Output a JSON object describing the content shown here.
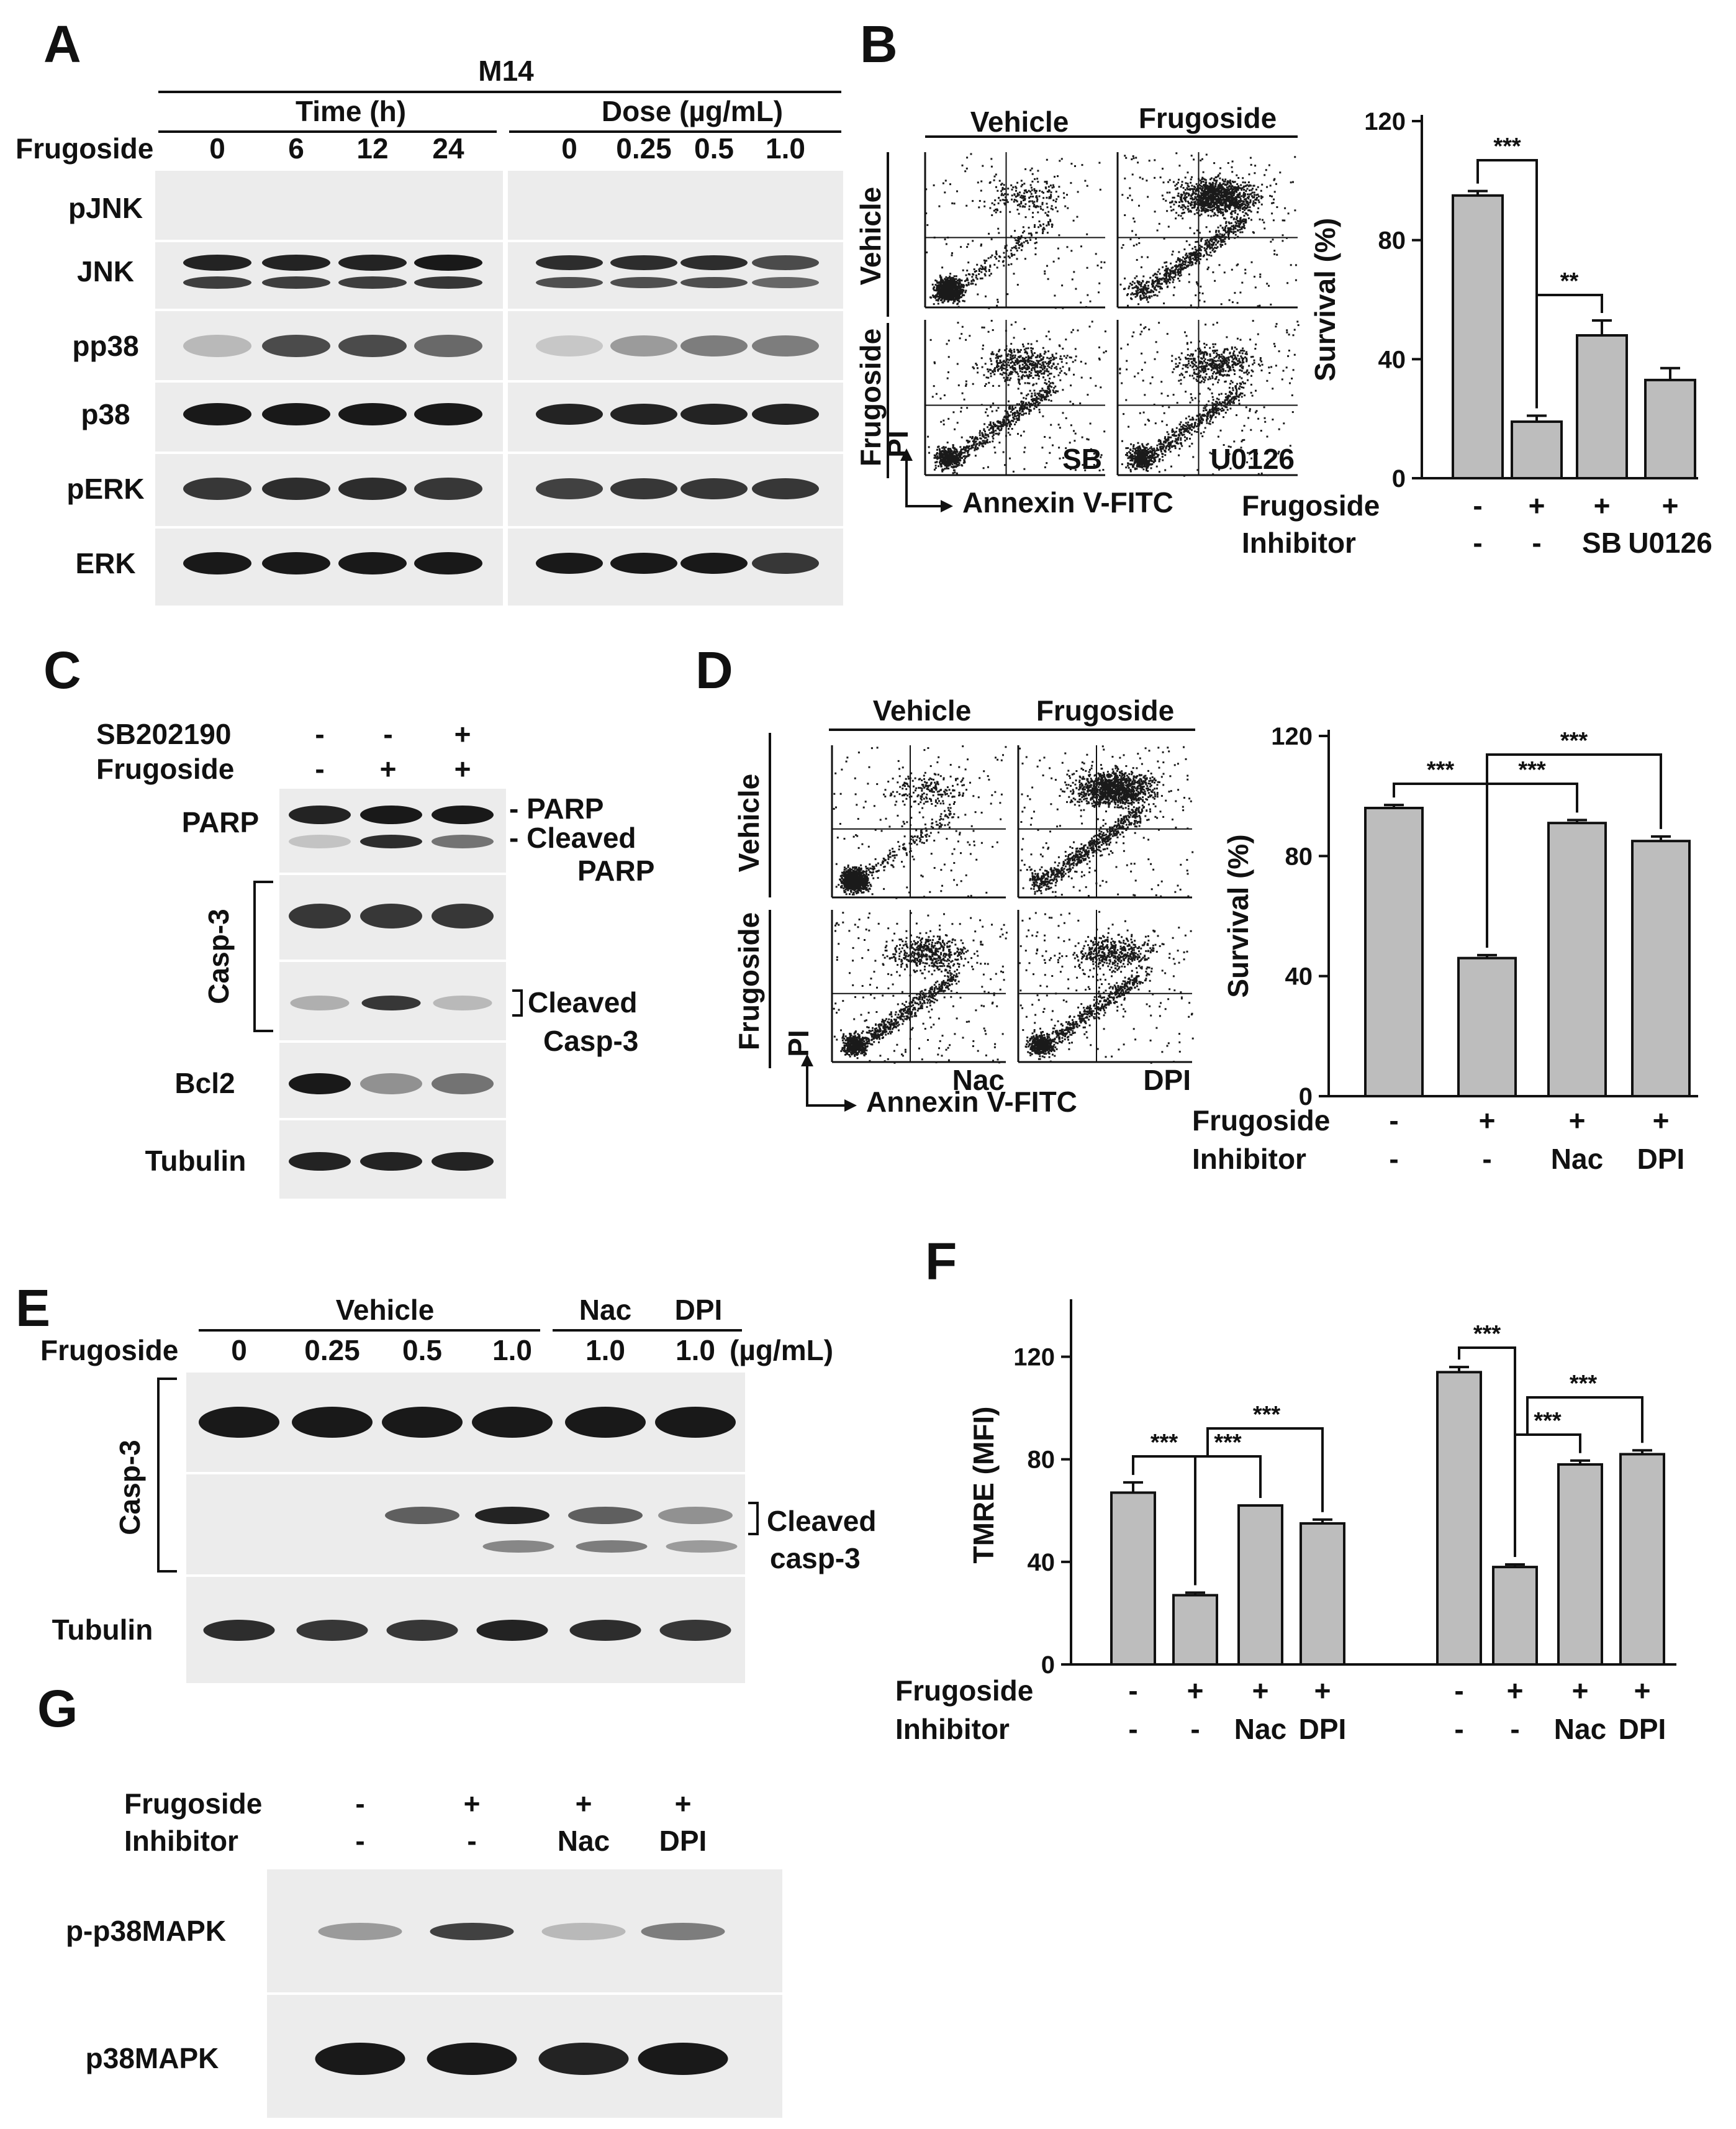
{
  "panels": {
    "A": {
      "label": "A",
      "cell_line": "M14",
      "time_header": "Time (h)",
      "dose_header": "Dose (µg/mL)",
      "row_label": "Frugoside",
      "time_lanes": [
        "0",
        "6",
        "12",
        "24"
      ],
      "dose_lanes": [
        "0",
        "0.25",
        "0.5",
        "1.0"
      ],
      "blots": [
        {
          "name": "pJNK",
          "time": [
            0,
            0,
            0,
            0
          ],
          "dose": [
            0,
            0,
            0,
            0
          ]
        },
        {
          "name": "JNK",
          "time": [
            0.9,
            0.9,
            0.9,
            0.95
          ],
          "dose": [
            0.85,
            0.85,
            0.85,
            0.7
          ]
        },
        {
          "name": "pp38",
          "time": [
            0.15,
            0.7,
            0.7,
            0.55
          ],
          "dose": [
            0.08,
            0.3,
            0.45,
            0.45
          ]
        },
        {
          "name": "p38",
          "time": [
            0.95,
            0.95,
            0.95,
            0.95
          ],
          "dose": [
            0.9,
            0.9,
            0.9,
            0.9
          ]
        },
        {
          "name": "pERK",
          "time": [
            0.8,
            0.85,
            0.85,
            0.8
          ],
          "dose": [
            0.75,
            0.8,
            0.8,
            0.8
          ]
        },
        {
          "name": "ERK",
          "time": [
            0.95,
            0.95,
            0.95,
            0.95
          ],
          "dose": [
            0.95,
            0.95,
            0.95,
            0.8
          ]
        }
      ]
    },
    "B": {
      "label": "B",
      "flow": {
        "col_headers": [
          "Vehicle",
          "Frugoside"
        ],
        "row_headers": [
          "Vehicle",
          "Frugoside"
        ],
        "inhibitor_labels": [
          "SB",
          "U0126"
        ],
        "y_axis": "PI",
        "x_axis": "Annexin V-FITC"
      },
      "bar": {
        "ylabel": "Survival (%)",
        "rows": [
          {
            "label": "Frugoside",
            "values": [
              "-",
              "+",
              "+",
              "+"
            ]
          },
          {
            "label": "Inhibitor",
            "values": [
              "-",
              "-",
              "SB",
              "U0126"
            ]
          }
        ],
        "sig": [
          "***",
          "**"
        ]
      }
    },
    "C": {
      "label": "C",
      "treatment_rows": [
        {
          "label": "SB202190",
          "values": [
            "-",
            "-",
            "+"
          ]
        },
        {
          "label": "Frugoside",
          "values": [
            "-",
            "+",
            "+"
          ]
        }
      ],
      "left_labels": {
        "parp": "PARP",
        "casp": "Casp-3",
        "bcl2": "Bcl2",
        "tubulin": "Tubulin"
      },
      "right_labels": {
        "parp": "- PARP",
        "cleaved1": "- Cleaved",
        "cleaved2": "PARP",
        "casp_cleaved1": "Cleaved",
        "casp_cleaved2": "Casp-3"
      }
    },
    "D": {
      "label": "D",
      "flow": {
        "col_headers": [
          "Vehicle",
          "Frugoside"
        ],
        "row_headers": [
          "Vehicle",
          "Frugoside"
        ],
        "inhibitor_labels": [
          "Nac",
          "DPI"
        ],
        "y_axis": "PI",
        "x_axis": "Annexin V-FITC"
      },
      "bar": {
        "ylabel": "Survival (%)",
        "rows": [
          {
            "label": "Frugoside",
            "values": [
              "-",
              "+",
              "+",
              "+"
            ]
          },
          {
            "label": "Inhibitor",
            "values": [
              "-",
              "-",
              "Nac",
              "DPI"
            ]
          }
        ],
        "sig": [
          "***",
          "***",
          "***"
        ]
      }
    },
    "E": {
      "label": "E",
      "group_vehicle": "Vehicle",
      "group_nac": "Nac",
      "group_dpi": "DPI",
      "row_label": "Frugoside",
      "lanes": [
        "0",
        "0.25",
        "0.5",
        "1.0",
        "1.0",
        "1.0"
      ],
      "unit": "(µg/mL)",
      "left_casp": "Casp-3",
      "tubulin": "Tubulin",
      "cleaved1": "Cleaved",
      "cleaved2": "casp-3"
    },
    "F": {
      "label": "F",
      "ylabel": "TMRE (MFI)",
      "rows": [
        {
          "label": "Frugoside",
          "values": [
            "-",
            "+",
            "+",
            "+",
            "-",
            "+",
            "+",
            "+"
          ]
        },
        {
          "label": "Inhibitor",
          "values": [
            "-",
            "-",
            "Nac",
            "DPI",
            "-",
            "-",
            "Nac",
            "DPI"
          ]
        }
      ],
      "sig": [
        "***",
        "***",
        "***",
        "***",
        "***",
        "***"
      ]
    },
    "G": {
      "label": "G",
      "rows": [
        {
          "label": "Frugoside",
          "values": [
            "-",
            "+",
            "+",
            "+"
          ]
        },
        {
          "label": "Inhibitor",
          "values": [
            "-",
            "-",
            "Nac",
            "DPI"
          ]
        }
      ],
      "blots": [
        {
          "name": "p-p38MAPK",
          "intensity": [
            0.3,
            0.75,
            0.15,
            0.45
          ]
        },
        {
          "name": "p38MAPK",
          "intensity": [
            0.95,
            0.95,
            0.9,
            0.95
          ]
        }
      ]
    }
  },
  "chart_data": [
    {
      "panel": "B",
      "type": "bar",
      "categories": [
        "- / -",
        "+ / -",
        "+ / SB",
        "+ / U0126"
      ],
      "values": [
        95,
        19,
        48,
        33
      ],
      "errors": [
        1.5,
        2,
        5,
        4
      ],
      "ylabel": "Survival (%)",
      "ylim": [
        0,
        120
      ],
      "yticks": [
        0,
        40,
        80,
        120
      ]
    },
    {
      "panel": "D",
      "type": "bar",
      "categories": [
        "- / -",
        "+ / -",
        "+ / Nac",
        "+ / DPI"
      ],
      "values": [
        96,
        46,
        91,
        85
      ],
      "errors": [
        1,
        1,
        1,
        1.5
      ],
      "ylabel": "Survival (%)",
      "ylim": [
        0,
        120
      ],
      "yticks": [
        0,
        40,
        80,
        120
      ]
    },
    {
      "panel": "F",
      "type": "bar",
      "categories": [
        "- / -",
        "+ / -",
        "+ / Nac",
        "+ / DPI",
        "- / -",
        "+ / -",
        "+ / Nac",
        "+ / DPI"
      ],
      "values": [
        67,
        27,
        62,
        55,
        114,
        38,
        78,
        82
      ],
      "errors": [
        4,
        1,
        0,
        1.5,
        2,
        1,
        1.5,
        1.5
      ],
      "ylabel": "TMRE (MFI)",
      "ylim": [
        0,
        140
      ],
      "yticks": [
        0,
        40,
        80,
        120
      ]
    }
  ]
}
